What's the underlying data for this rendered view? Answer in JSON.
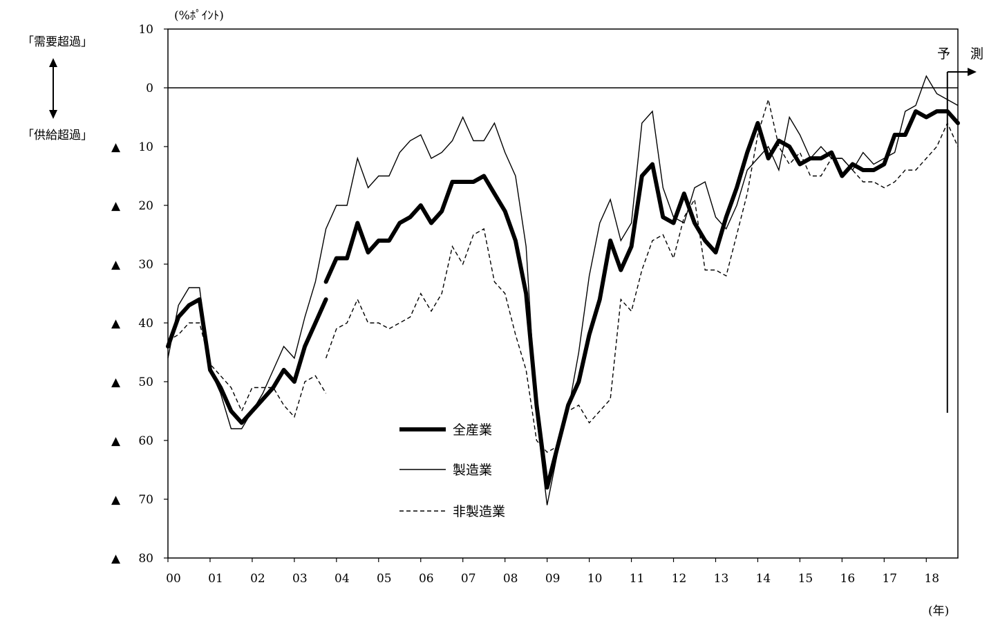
{
  "chart_data": {
    "type": "line",
    "unit_label": "(%ﾎﾟｲﾝﾄ)",
    "x_unit_label": "(年)",
    "x_tick_labels": [
      "00",
      "01",
      "02",
      "03",
      "04",
      "05",
      "06",
      "07",
      "08",
      "09",
      "10",
      "11",
      "12",
      "13",
      "14",
      "15",
      "16",
      "17",
      "18"
    ],
    "x_range": [
      2000,
      2018.75
    ],
    "y_range": [
      -80,
      10
    ],
    "y_ticks": [
      {
        "value": 10,
        "label": "10",
        "marker": ""
      },
      {
        "value": 0,
        "label": "0",
        "marker": ""
      },
      {
        "value": -10,
        "label": "10",
        "marker": "▲"
      },
      {
        "value": -20,
        "label": "20",
        "marker": "▲"
      },
      {
        "value": -30,
        "label": "30",
        "marker": "▲"
      },
      {
        "value": -40,
        "label": "40",
        "marker": "▲"
      },
      {
        "value": -50,
        "label": "50",
        "marker": "▲"
      },
      {
        "value": -60,
        "label": "60",
        "marker": "▲"
      },
      {
        "value": -70,
        "label": "70",
        "marker": "▲"
      },
      {
        "value": -80,
        "label": "80",
        "marker": "▲"
      }
    ],
    "zero_line": true,
    "grid": false,
    "legend_position": "lower-center",
    "side_labels": {
      "top": "「需要超過」",
      "bottom": "「供給超過」"
    },
    "forecast": {
      "start_x": 2018.5,
      "label_1": "予",
      "label_2": "測"
    },
    "series": [
      {
        "name": "全産業",
        "style": "thick",
        "segments": [
          {
            "x": [
              2000.0,
              2000.25,
              2000.5,
              2000.75,
              2001.0,
              2001.25,
              2001.5,
              2001.75,
              2002.0,
              2002.25,
              2002.5,
              2002.75,
              2003.0,
              2003.25,
              2003.5,
              2003.75
            ],
            "y": [
              -44,
              -39,
              -37,
              -36,
              -48,
              -51,
              -55,
              -57,
              -55,
              -53,
              -51,
              -48,
              -50,
              -44,
              -40,
              -36
            ]
          },
          {
            "x": [
              2003.75,
              2004.0,
              2004.25,
              2004.5,
              2004.75,
              2005.0,
              2005.25,
              2005.5,
              2005.75,
              2006.0,
              2006.25,
              2006.5,
              2006.75,
              2007.0,
              2007.25,
              2007.5,
              2007.75,
              2008.0,
              2008.25,
              2008.5,
              2008.75,
              2009.0,
              2009.25,
              2009.5,
              2009.75,
              2010.0,
              2010.25,
              2010.5,
              2010.75,
              2011.0,
              2011.25,
              2011.5,
              2011.75,
              2012.0,
              2012.25,
              2012.5,
              2012.75,
              2013.0,
              2013.25,
              2013.5,
              2013.75,
              2014.0,
              2014.25,
              2014.5,
              2014.75,
              2015.0,
              2015.25,
              2015.5,
              2015.75,
              2016.0,
              2016.25,
              2016.5,
              2016.75,
              2017.0,
              2017.25,
              2017.5,
              2017.75,
              2018.0,
              2018.25,
              2018.5,
              2018.75
            ],
            "y": [
              -33,
              -29,
              -29,
              -23,
              -28,
              -26,
              -26,
              -23,
              -22,
              -20,
              -23,
              -21,
              -16,
              -16,
              -16,
              -15,
              -18,
              -21,
              -26,
              -35,
              -54,
              -68,
              -61,
              -54,
              -50,
              -42,
              -36,
              -26,
              -31,
              -27,
              -15,
              -13,
              -22,
              -23,
              -18,
              -23,
              -26,
              -28,
              -22,
              -17,
              -11,
              -6,
              -12,
              -9,
              -10,
              -13,
              -12,
              -12,
              -11,
              -15,
              -13,
              -14,
              -14,
              -13,
              -8,
              -8,
              -4,
              -5,
              -4,
              -4,
              -6
            ]
          }
        ]
      },
      {
        "name": "製造業",
        "style": "thin",
        "segments": [
          {
            "x": [
              2000.0,
              2000.25,
              2000.5,
              2000.75,
              2001.0,
              2001.25,
              2001.5,
              2001.75,
              2002.0,
              2002.25,
              2002.5,
              2002.75,
              2003.0,
              2003.25,
              2003.5,
              2003.75,
              2004.0,
              2004.25,
              2004.5,
              2004.75,
              2005.0,
              2005.25,
              2005.5,
              2005.75,
              2006.0,
              2006.25,
              2006.5,
              2006.75,
              2007.0,
              2007.25,
              2007.5,
              2007.75,
              2008.0,
              2008.25,
              2008.5,
              2008.75,
              2009.0,
              2009.25,
              2009.5,
              2009.75,
              2010.0,
              2010.25,
              2010.5,
              2010.75,
              2011.0,
              2011.25,
              2011.5,
              2011.75,
              2012.0,
              2012.25,
              2012.5,
              2012.75,
              2013.0,
              2013.25,
              2013.5,
              2013.75,
              2014.0,
              2014.25,
              2014.5,
              2014.75,
              2015.0,
              2015.25,
              2015.5,
              2015.75,
              2016.0,
              2016.25,
              2016.5,
              2016.75,
              2017.0,
              2017.25,
              2017.5,
              2017.75,
              2018.0,
              2018.25,
              2018.5,
              2018.75
            ],
            "y": [
              -46,
              -37,
              -34,
              -34,
              -48,
              -52,
              -58,
              -58,
              -55,
              -52,
              -48,
              -44,
              -46,
              -39,
              -33,
              -24,
              -20,
              -20,
              -12,
              -17,
              -15,
              -15,
              -11,
              -9,
              -8,
              -12,
              -11,
              -9,
              -5,
              -9,
              -9,
              -6,
              -11,
              -15,
              -27,
              -56,
              -71,
              -62,
              -55,
              -45,
              -32,
              -23,
              -19,
              -26,
              -23,
              -6,
              -4,
              -17,
              -22,
              -23,
              -17,
              -16,
              -22,
              -24,
              -20,
              -14,
              -12,
              -10,
              -14,
              -5,
              -8,
              -12,
              -10,
              -12,
              -12,
              -14,
              -11,
              -13,
              -12,
              -11,
              -4,
              -3,
              2,
              -1,
              -2,
              -3
            ]
          }
        ]
      },
      {
        "name": "非製造業",
        "style": "dashed",
        "segments": [
          {
            "x": [
              2000.0,
              2000.25,
              2000.5,
              2000.75,
              2001.0,
              2001.25,
              2001.5,
              2001.75,
              2002.0,
              2002.25,
              2002.5,
              2002.75,
              2003.0,
              2003.25,
              2003.5,
              2003.75
            ],
            "y": [
              -43,
              -42,
              -40,
              -40,
              -47,
              -49,
              -51,
              -55,
              -51,
              -51,
              -51,
              -54,
              -56,
              -50,
              -49,
              -52
            ]
          },
          {
            "x": [
              2003.75,
              2004.0,
              2004.25,
              2004.5,
              2004.75,
              2005.0,
              2005.25,
              2005.5,
              2005.75,
              2006.0,
              2006.25,
              2006.5,
              2006.75,
              2007.0,
              2007.25,
              2007.5,
              2007.75,
              2008.0,
              2008.25,
              2008.5,
              2008.75,
              2009.0,
              2009.25,
              2009.5,
              2009.75,
              2010.0,
              2010.25,
              2010.5,
              2010.75,
              2011.0,
              2011.25,
              2011.5,
              2011.75,
              2012.0,
              2012.25,
              2012.5,
              2012.75,
              2013.0,
              2013.25,
              2013.5,
              2013.75,
              2014.0,
              2014.25,
              2014.5,
              2014.75,
              2015.0,
              2015.25,
              2015.5,
              2015.75,
              2016.0,
              2016.25,
              2016.5,
              2016.75,
              2017.0,
              2017.25,
              2017.5,
              2017.75,
              2018.0,
              2018.25,
              2018.5,
              2018.75
            ],
            "y": [
              -46,
              -41,
              -40,
              -36,
              -40,
              -40,
              -41,
              -40,
              -39,
              -35,
              -38,
              -35,
              -27,
              -30,
              -25,
              -24,
              -33,
              -35,
              -42,
              -48,
              -60,
              -62,
              -61,
              -55,
              -54,
              -57,
              -55,
              -53,
              -36,
              -38,
              -31,
              -26,
              -25,
              -29,
              -22,
              -19,
              -31,
              -31,
              -32,
              -25,
              -18,
              -8,
              -2,
              -10,
              -13,
              -11,
              -15,
              -15,
              -12,
              -12,
              -14,
              -16,
              -16,
              -17,
              -16,
              -14,
              -14,
              -12,
              -10,
              -6,
              -10
            ]
          }
        ]
      }
    ]
  }
}
